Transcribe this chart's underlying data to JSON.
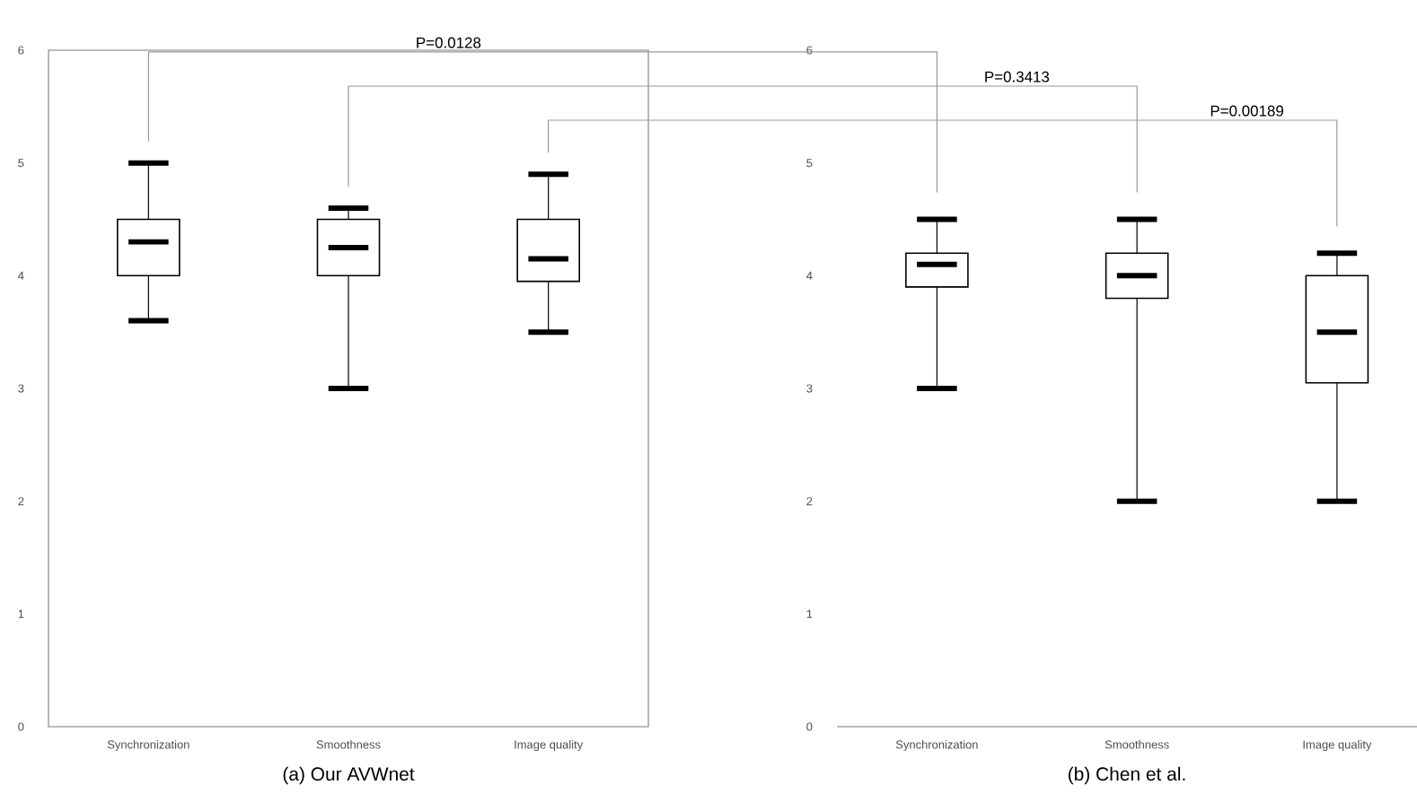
{
  "chart_data": [
    {
      "type": "box",
      "xlabel": "(a) Our AVWnet",
      "categories": [
        "Synchronization",
        "Smoothness",
        "Image quality"
      ],
      "boxes": [
        {
          "low": 3.6,
          "q1": 4.0,
          "median": 4.3,
          "q3": 4.5,
          "high": 5.0
        },
        {
          "low": 3.0,
          "q1": 4.0,
          "median": 4.25,
          "q3": 4.5,
          "high": 4.6
        },
        {
          "low": 3.5,
          "q1": 3.95,
          "median": 4.15,
          "q3": 4.5,
          "high": 4.9
        }
      ],
      "ylim": [
        0,
        6
      ],
      "yticks": [
        0,
        1,
        2,
        3,
        4,
        5,
        6
      ],
      "annotations": [
        "P=0.0128"
      ]
    },
    {
      "type": "box",
      "xlabel": "(b) Chen et al.",
      "categories": [
        "Synchronization",
        "Smoothness",
        "Image quality"
      ],
      "boxes": [
        {
          "low": 3.0,
          "q1": 3.9,
          "median": 4.1,
          "q3": 4.2,
          "high": 4.5
        },
        {
          "low": 2.0,
          "q1": 3.8,
          "median": 4.0,
          "q3": 4.2,
          "high": 4.5
        },
        {
          "low": 2.0,
          "q1": 3.05,
          "median": 3.5,
          "q3": 4.0,
          "high": 4.2
        }
      ],
      "ylim": [
        0,
        6
      ],
      "yticks": [
        0,
        1,
        2,
        3,
        4,
        5,
        6
      ],
      "annotations": [
        "P=0.3413",
        "P=0.00189"
      ]
    }
  ]
}
